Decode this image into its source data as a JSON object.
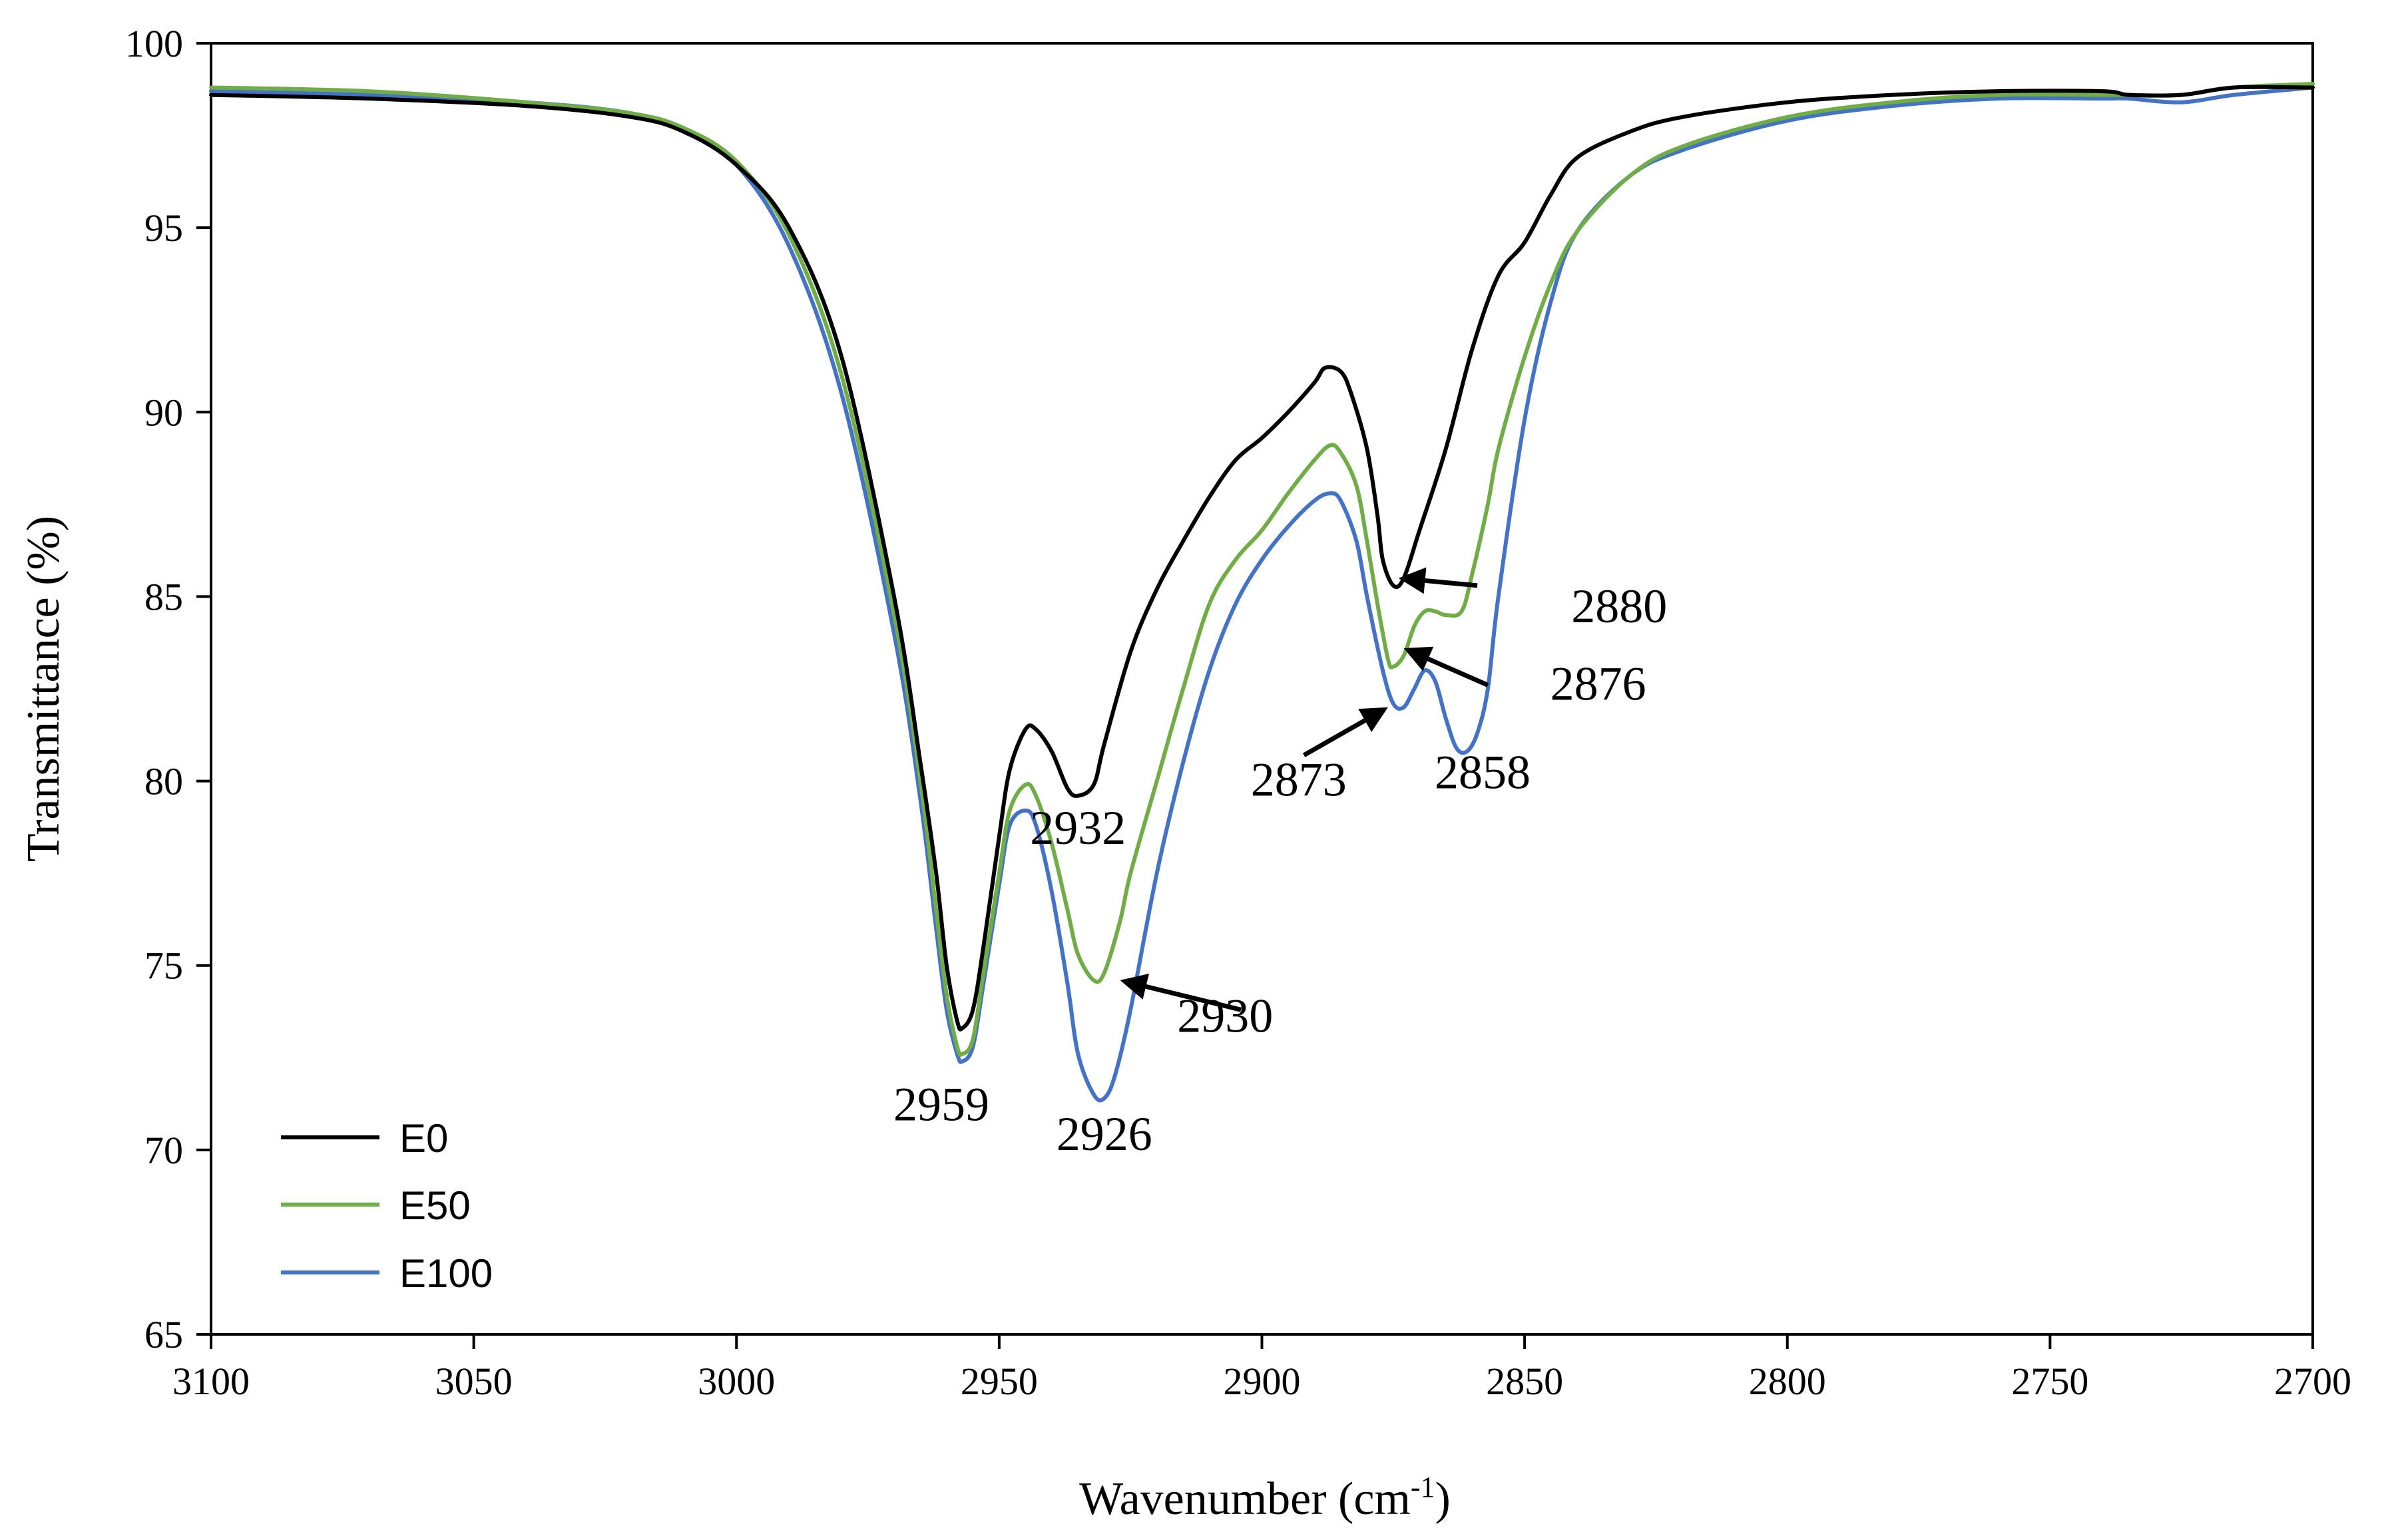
{
  "chart_data": {
    "type": "line",
    "title": "",
    "xlabel": "Wavenumber (cm",
    "xlabel_sup": "-1",
    "xlabel_end": ")",
    "ylabel": "Transmittance (%)",
    "xlim": [
      3100,
      2700
    ],
    "ylim": [
      65,
      100
    ],
    "xticks": [
      3100,
      3050,
      3000,
      2950,
      2900,
      2850,
      2800,
      2750,
      2700
    ],
    "yticks": [
      65,
      70,
      75,
      80,
      85,
      90,
      95,
      100
    ],
    "xtick_labels": [
      "3100",
      "3050",
      "3000",
      "2950",
      "2900",
      "2850",
      "2800",
      "2750",
      "2700"
    ],
    "ytick_labels": [
      "65",
      "70",
      "75",
      "80",
      "85",
      "90",
      "95",
      "100"
    ],
    "grid": false,
    "legend_position": "bottom-left",
    "series": [
      {
        "name": "E0",
        "color": "#000000",
        "points": [
          [
            3100,
            98.6
          ],
          [
            3070,
            98.5
          ],
          [
            3040,
            98.3
          ],
          [
            3020,
            98.0
          ],
          [
            3010,
            97.6
          ],
          [
            3000,
            96.7
          ],
          [
            2990,
            95.0
          ],
          [
            2980,
            91.5
          ],
          [
            2970,
            85.0
          ],
          [
            2965,
            80.5
          ],
          [
            2962,
            77.5
          ],
          [
            2960,
            75.0
          ],
          [
            2958,
            73.5
          ],
          [
            2957,
            73.3
          ],
          [
            2955,
            73.8
          ],
          [
            2953,
            75.5
          ],
          [
            2950,
            78.5
          ],
          [
            2948,
            80.3
          ],
          [
            2945,
            81.4
          ],
          [
            2943,
            81.4
          ],
          [
            2940,
            80.8
          ],
          [
            2937,
            79.8
          ],
          [
            2935,
            79.6
          ],
          [
            2932,
            79.9
          ],
          [
            2930,
            81.0
          ],
          [
            2925,
            83.5
          ],
          [
            2920,
            85.2
          ],
          [
            2915,
            86.5
          ],
          [
            2910,
            87.7
          ],
          [
            2905,
            88.7
          ],
          [
            2900,
            89.3
          ],
          [
            2895,
            90.0
          ],
          [
            2890,
            90.8
          ],
          [
            2888,
            91.2
          ],
          [
            2885,
            91.1
          ],
          [
            2883,
            90.5
          ],
          [
            2880,
            89.0
          ],
          [
            2878,
            87.2
          ],
          [
            2877,
            86.0
          ],
          [
            2875,
            85.3
          ],
          [
            2873,
            85.5
          ],
          [
            2870,
            86.8
          ],
          [
            2865,
            89.0
          ],
          [
            2860,
            91.7
          ],
          [
            2855,
            93.7
          ],
          [
            2850,
            94.6
          ],
          [
            2845,
            95.9
          ],
          [
            2840,
            96.9
          ],
          [
            2830,
            97.6
          ],
          [
            2820,
            98.0
          ],
          [
            2800,
            98.4
          ],
          [
            2780,
            98.6
          ],
          [
            2760,
            98.7
          ],
          [
            2740,
            98.7
          ],
          [
            2735,
            98.6
          ],
          [
            2725,
            98.6
          ],
          [
            2715,
            98.8
          ],
          [
            2700,
            98.8
          ]
        ]
      },
      {
        "name": "E50",
        "color": "#70AD47",
        "points": [
          [
            3100,
            98.8
          ],
          [
            3070,
            98.7
          ],
          [
            3040,
            98.4
          ],
          [
            3020,
            98.1
          ],
          [
            3010,
            97.7
          ],
          [
            3000,
            96.8
          ],
          [
            2990,
            94.8
          ],
          [
            2980,
            91.0
          ],
          [
            2970,
            84.5
          ],
          [
            2965,
            80.0
          ],
          [
            2962,
            76.5
          ],
          [
            2960,
            74.2
          ],
          [
            2958,
            72.8
          ],
          [
            2957,
            72.6
          ],
          [
            2955,
            73.0
          ],
          [
            2953,
            74.8
          ],
          [
            2950,
            77.5
          ],
          [
            2948,
            79.2
          ],
          [
            2945,
            79.9
          ],
          [
            2943,
            79.6
          ],
          [
            2940,
            78.3
          ],
          [
            2937,
            76.5
          ],
          [
            2935,
            75.3
          ],
          [
            2932,
            74.6
          ],
          [
            2930,
            74.8
          ],
          [
            2927,
            76.2
          ],
          [
            2925,
            77.5
          ],
          [
            2920,
            80.0
          ],
          [
            2915,
            82.5
          ],
          [
            2910,
            84.8
          ],
          [
            2905,
            86.0
          ],
          [
            2900,
            86.8
          ],
          [
            2895,
            87.8
          ],
          [
            2890,
            88.7
          ],
          [
            2887,
            89.1
          ],
          [
            2885,
            88.9
          ],
          [
            2882,
            88.0
          ],
          [
            2880,
            86.5
          ],
          [
            2878,
            84.8
          ],
          [
            2876,
            83.3
          ],
          [
            2875,
            83.1
          ],
          [
            2873,
            83.4
          ],
          [
            2871,
            84.2
          ],
          [
            2869,
            84.6
          ],
          [
            2867,
            84.6
          ],
          [
            2865,
            84.5
          ],
          [
            2862,
            84.6
          ],
          [
            2860,
            85.6
          ],
          [
            2857,
            87.5
          ],
          [
            2855,
            89.0
          ],
          [
            2850,
            91.5
          ],
          [
            2845,
            93.5
          ],
          [
            2840,
            94.9
          ],
          [
            2830,
            96.4
          ],
          [
            2820,
            97.2
          ],
          [
            2800,
            98.0
          ],
          [
            2780,
            98.4
          ],
          [
            2760,
            98.6
          ],
          [
            2740,
            98.6
          ],
          [
            2735,
            98.6
          ],
          [
            2725,
            98.6
          ],
          [
            2715,
            98.8
          ],
          [
            2700,
            98.9
          ]
        ]
      },
      {
        "name": "E100",
        "color": "#4472C4",
        "points": [
          [
            3100,
            98.7
          ],
          [
            3070,
            98.6
          ],
          [
            3040,
            98.4
          ],
          [
            3020,
            98.1
          ],
          [
            3010,
            97.6
          ],
          [
            3000,
            96.7
          ],
          [
            2990,
            94.5
          ],
          [
            2980,
            90.5
          ],
          [
            2970,
            84.0
          ],
          [
            2965,
            79.5
          ],
          [
            2962,
            76.0
          ],
          [
            2960,
            73.8
          ],
          [
            2958,
            72.6
          ],
          [
            2957,
            72.4
          ],
          [
            2955,
            72.8
          ],
          [
            2953,
            74.5
          ],
          [
            2950,
            77.2
          ],
          [
            2948,
            78.8
          ],
          [
            2945,
            79.2
          ],
          [
            2943,
            78.8
          ],
          [
            2940,
            77.0
          ],
          [
            2937,
            74.5
          ],
          [
            2935,
            72.6
          ],
          [
            2932,
            71.5
          ],
          [
            2930,
            71.4
          ],
          [
            2928,
            72.0
          ],
          [
            2925,
            73.8
          ],
          [
            2920,
            77.5
          ],
          [
            2915,
            80.5
          ],
          [
            2910,
            83.0
          ],
          [
            2905,
            84.8
          ],
          [
            2900,
            86.0
          ],
          [
            2895,
            86.9
          ],
          [
            2890,
            87.6
          ],
          [
            2887,
            87.8
          ],
          [
            2885,
            87.6
          ],
          [
            2882,
            86.5
          ],
          [
            2880,
            85.0
          ],
          [
            2877,
            83.0
          ],
          [
            2875,
            82.1
          ],
          [
            2873,
            82.0
          ],
          [
            2871,
            82.5
          ],
          [
            2869,
            83.0
          ],
          [
            2867,
            82.7
          ],
          [
            2865,
            81.7
          ],
          [
            2863,
            80.9
          ],
          [
            2861,
            80.8
          ],
          [
            2859,
            81.3
          ],
          [
            2857,
            82.5
          ],
          [
            2855,
            85.0
          ],
          [
            2850,
            89.8
          ],
          [
            2845,
            93.0
          ],
          [
            2840,
            94.9
          ],
          [
            2830,
            96.4
          ],
          [
            2820,
            97.1
          ],
          [
            2800,
            97.9
          ],
          [
            2780,
            98.3
          ],
          [
            2760,
            98.5
          ],
          [
            2740,
            98.5
          ],
          [
            2735,
            98.5
          ],
          [
            2725,
            98.4
          ],
          [
            2715,
            98.6
          ],
          [
            2700,
            98.8
          ]
        ]
      }
    ],
    "annotations": [
      {
        "text": "2959",
        "x": 2961,
        "y": 70.8
      },
      {
        "text": "2926",
        "x": 2930,
        "y": 70.0
      },
      {
        "text": "2932",
        "x": 2935,
        "y": 78.3
      },
      {
        "text": "2930",
        "x": 2907,
        "y": 73.2
      },
      {
        "text": "2873",
        "x": 2893,
        "y": 79.6
      },
      {
        "text": "2858",
        "x": 2858,
        "y": 79.8
      },
      {
        "text": "2880",
        "x": 2832,
        "y": 84.3
      },
      {
        "text": "2876",
        "x": 2836,
        "y": 82.2
      }
    ],
    "arrows": [
      {
        "from": [
          2904,
          73.8
        ],
        "to": [
          2927,
          74.6
        ]
      },
      {
        "from": [
          2859,
          85.3
        ],
        "to": [
          2874,
          85.5
        ]
      },
      {
        "from": [
          2857,
          82.6
        ],
        "to": [
          2873,
          83.6
        ]
      },
      {
        "from": [
          2892,
          80.7
        ],
        "to": [
          2876,
          82.0
        ]
      }
    ]
  }
}
